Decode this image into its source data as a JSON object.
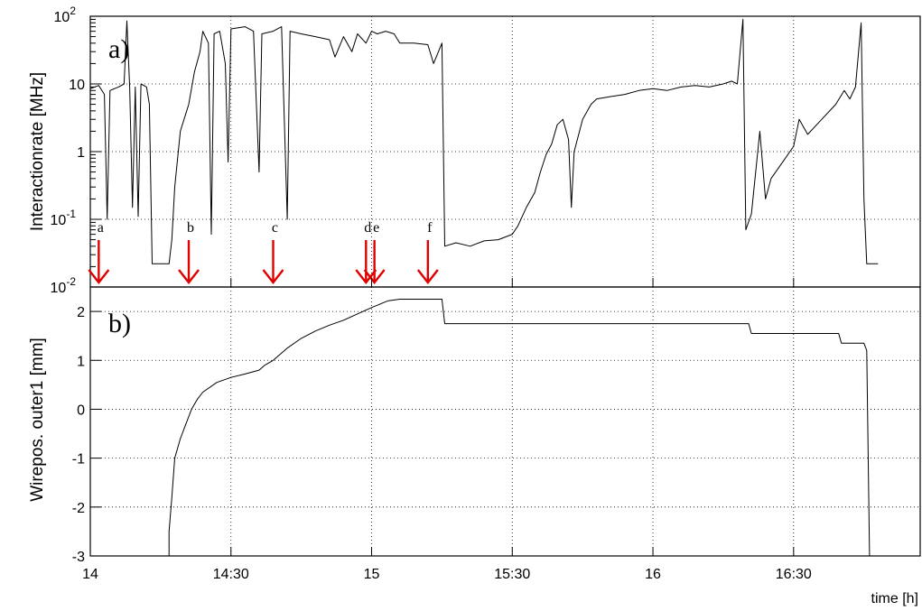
{
  "chart_data": [
    {
      "type": "line",
      "panel_label": "a)",
      "ylabel": "Interactionrate [MHz]",
      "yscale": "log",
      "ylim": [
        0.01,
        100
      ],
      "y_tick_labels": [
        {
          "value": 100,
          "base": "10",
          "exp": "2"
        },
        {
          "value": 10,
          "text": "10"
        },
        {
          "value": 1,
          "text": "1"
        },
        {
          "value": 0.1,
          "base": "10",
          "exp": "-1"
        },
        {
          "value": 0.01,
          "base": "10",
          "exp": "-2"
        }
      ],
      "xlim_hours": [
        14.0,
        16.95
      ],
      "grid": true,
      "series": [
        {
          "points": [
            [
              14.0,
              8.5
            ],
            [
              14.03,
              9.5
            ],
            [
              14.05,
              7
            ],
            [
              14.06,
              0.1
            ],
            [
              14.07,
              8
            ],
            [
              14.1,
              9
            ],
            [
              14.12,
              10
            ],
            [
              14.13,
              85
            ],
            [
              14.14,
              9
            ],
            [
              14.15,
              0.15
            ],
            [
              14.16,
              9
            ],
            [
              14.17,
              0.11
            ],
            [
              14.18,
              10
            ],
            [
              14.2,
              9
            ],
            [
              14.21,
              5
            ],
            [
              14.22,
              0.022
            ],
            [
              14.25,
              0.022
            ],
            [
              14.28,
              0.022
            ],
            [
              14.29,
              0.05
            ],
            [
              14.3,
              0.3
            ],
            [
              14.32,
              2
            ],
            [
              14.35,
              5
            ],
            [
              14.37,
              15
            ],
            [
              14.39,
              30
            ],
            [
              14.4,
              60
            ],
            [
              14.42,
              40
            ],
            [
              14.43,
              0.06
            ],
            [
              14.44,
              55
            ],
            [
              14.46,
              60
            ],
            [
              14.48,
              20
            ],
            [
              14.49,
              0.7
            ],
            [
              14.5,
              65
            ],
            [
              14.55,
              70
            ],
            [
              14.58,
              60
            ],
            [
              14.6,
              0.5
            ],
            [
              14.61,
              55
            ],
            [
              14.65,
              60
            ],
            [
              14.68,
              70
            ],
            [
              14.7,
              0.1
            ],
            [
              14.71,
              60
            ],
            [
              14.75,
              55
            ],
            [
              14.8,
              50
            ],
            [
              14.85,
              45
            ],
            [
              14.87,
              25
            ],
            [
              14.9,
              50
            ],
            [
              14.93,
              30
            ],
            [
              14.95,
              55
            ],
            [
              14.98,
              40
            ],
            [
              15.0,
              60
            ],
            [
              15.02,
              55
            ],
            [
              15.05,
              60
            ],
            [
              15.08,
              55
            ],
            [
              15.1,
              40
            ],
            [
              15.15,
              40
            ],
            [
              15.2,
              38
            ],
            [
              15.22,
              20
            ],
            [
              15.25,
              40
            ],
            [
              15.26,
              0.04
            ],
            [
              15.3,
              0.045
            ],
            [
              15.35,
              0.04
            ],
            [
              15.4,
              0.048
            ],
            [
              15.45,
              0.05
            ],
            [
              15.5,
              0.06
            ],
            [
              15.52,
              0.08
            ],
            [
              15.55,
              0.15
            ],
            [
              15.58,
              0.25
            ],
            [
              15.6,
              0.5
            ],
            [
              15.62,
              0.9
            ],
            [
              15.64,
              1.3
            ],
            [
              15.66,
              2.5
            ],
            [
              15.68,
              3
            ],
            [
              15.7,
              1.5
            ],
            [
              15.71,
              0.15
            ],
            [
              15.72,
              1
            ],
            [
              15.75,
              3
            ],
            [
              15.78,
              5
            ],
            [
              15.8,
              6
            ],
            [
              15.85,
              6.5
            ],
            [
              15.9,
              7
            ],
            [
              15.95,
              8
            ],
            [
              16.0,
              8.5
            ],
            [
              16.05,
              8
            ],
            [
              16.1,
              9
            ],
            [
              16.15,
              9.5
            ],
            [
              16.2,
              9
            ],
            [
              16.25,
              10
            ],
            [
              16.28,
              11
            ],
            [
              16.3,
              10
            ],
            [
              16.32,
              90
            ],
            [
              16.33,
              0.07
            ],
            [
              16.35,
              0.12
            ],
            [
              16.38,
              2
            ],
            [
              16.4,
              0.2
            ],
            [
              16.42,
              0.4
            ],
            [
              16.45,
              0.6
            ],
            [
              16.5,
              1.2
            ],
            [
              16.52,
              3
            ],
            [
              16.55,
              1.8
            ],
            [
              16.6,
              3
            ],
            [
              16.65,
              5
            ],
            [
              16.68,
              8
            ],
            [
              16.7,
              6
            ],
            [
              16.72,
              9
            ],
            [
              16.74,
              80
            ],
            [
              16.75,
              0.2
            ],
            [
              16.76,
              0.022
            ],
            [
              16.8,
              0.022
            ]
          ]
        }
      ],
      "markers": [
        {
          "label": "a",
          "x": 14.03
        },
        {
          "label": "b",
          "x": 14.35
        },
        {
          "label": "c",
          "x": 14.65
        },
        {
          "label": "d",
          "x": 14.98
        },
        {
          "label": "e",
          "x": 15.01
        },
        {
          "label": "f",
          "x": 15.2
        }
      ]
    },
    {
      "type": "line",
      "panel_label": "b)",
      "ylabel": "Wirepos. outer1 [mm]",
      "xlabel": "time [h]",
      "ylim": [
        -3,
        2.5
      ],
      "y_ticks": [
        2,
        1,
        0,
        -1,
        -2,
        -3
      ],
      "xlim_hours": [
        14.0,
        16.95
      ],
      "x_ticks": [
        {
          "value": 14.0,
          "label": "14"
        },
        {
          "value": 14.5,
          "label": "14:30"
        },
        {
          "value": 15.0,
          "label": "15"
        },
        {
          "value": 15.5,
          "label": "15:30"
        },
        {
          "value": 16.0,
          "label": "16"
        },
        {
          "value": 16.5,
          "label": "16:30"
        }
      ],
      "grid": true,
      "series": [
        {
          "points": [
            [
              14.28,
              -3
            ],
            [
              14.28,
              -2.5
            ],
            [
              14.29,
              -1.8
            ],
            [
              14.3,
              -1
            ],
            [
              14.32,
              -0.6
            ],
            [
              14.34,
              -0.3
            ],
            [
              14.36,
              0
            ],
            [
              14.38,
              0.2
            ],
            [
              14.4,
              0.35
            ],
            [
              14.45,
              0.55
            ],
            [
              14.5,
              0.65
            ],
            [
              14.55,
              0.72
            ],
            [
              14.6,
              0.8
            ],
            [
              14.62,
              0.9
            ],
            [
              14.65,
              1.0
            ],
            [
              14.7,
              1.25
            ],
            [
              14.75,
              1.45
            ],
            [
              14.8,
              1.6
            ],
            [
              14.85,
              1.72
            ],
            [
              14.9,
              1.82
            ],
            [
              14.95,
              1.95
            ],
            [
              15.0,
              2.08
            ],
            [
              15.05,
              2.2
            ],
            [
              15.06,
              2.22
            ],
            [
              15.1,
              2.25
            ],
            [
              15.15,
              2.25
            ],
            [
              15.2,
              2.25
            ],
            [
              15.25,
              2.25
            ],
            [
              15.26,
              1.75
            ],
            [
              15.5,
              1.75
            ],
            [
              16.0,
              1.75
            ],
            [
              16.2,
              1.75
            ],
            [
              16.34,
              1.75
            ],
            [
              16.35,
              1.55
            ],
            [
              16.55,
              1.55
            ],
            [
              16.66,
              1.55
            ],
            [
              16.67,
              1.35
            ],
            [
              16.75,
              1.35
            ],
            [
              16.76,
              1.2
            ],
            [
              16.77,
              -3
            ]
          ]
        }
      ]
    }
  ]
}
